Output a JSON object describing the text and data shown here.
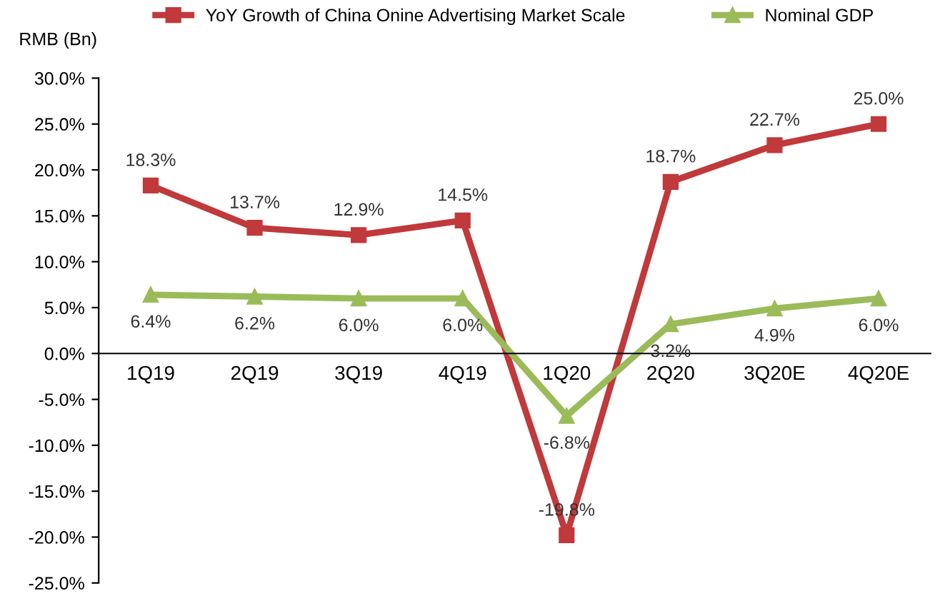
{
  "chart_data": {
    "type": "line",
    "ylabel": "RMB (Bn)",
    "categories": [
      "1Q19",
      "2Q19",
      "3Q19",
      "4Q19",
      "1Q20",
      "2Q20",
      "3Q20E",
      "4Q20E"
    ],
    "series": [
      {
        "name": "YoY Growth of China Onine Advertising Market Scale",
        "color": "#c0393b",
        "marker": "square",
        "values": [
          18.3,
          13.7,
          12.9,
          14.5,
          -19.8,
          18.7,
          22.7,
          25.0
        ],
        "value_labels": [
          "18.3%",
          "13.7%",
          "12.9%",
          "14.5%",
          "-19.8%",
          "18.7%",
          "22.7%",
          "25.0%"
        ]
      },
      {
        "name": "Nominal GDP",
        "color": "#9bbb59",
        "marker": "triangle",
        "values": [
          6.4,
          6.2,
          6.0,
          6.0,
          -6.8,
          3.2,
          4.9,
          6.0
        ],
        "value_labels": [
          "6.4%",
          "6.2%",
          "6.0%",
          "6.0%",
          "-6.8%",
          "3.2%",
          "4.9%",
          "6.0%"
        ]
      }
    ],
    "ylim": [
      -25,
      30
    ],
    "yticks": [
      {
        "value": -25,
        "label": "-25.0%"
      },
      {
        "value": -20,
        "label": "-20.0%"
      },
      {
        "value": -15,
        "label": "-15.0%"
      },
      {
        "value": -10,
        "label": "-10.0%"
      },
      {
        "value": -5,
        "label": "-5.0%"
      },
      {
        "value": 0,
        "label": "0.0%"
      },
      {
        "value": 5,
        "label": "5.0%"
      },
      {
        "value": 10,
        "label": "10.0%"
      },
      {
        "value": 15,
        "label": "15.0%"
      },
      {
        "value": 20,
        "label": "20.0%"
      },
      {
        "value": 25,
        "label": "25.0%"
      },
      {
        "value": 30,
        "label": "30.0%"
      }
    ],
    "grid": false,
    "legend": "top",
    "line_style": "solid"
  }
}
